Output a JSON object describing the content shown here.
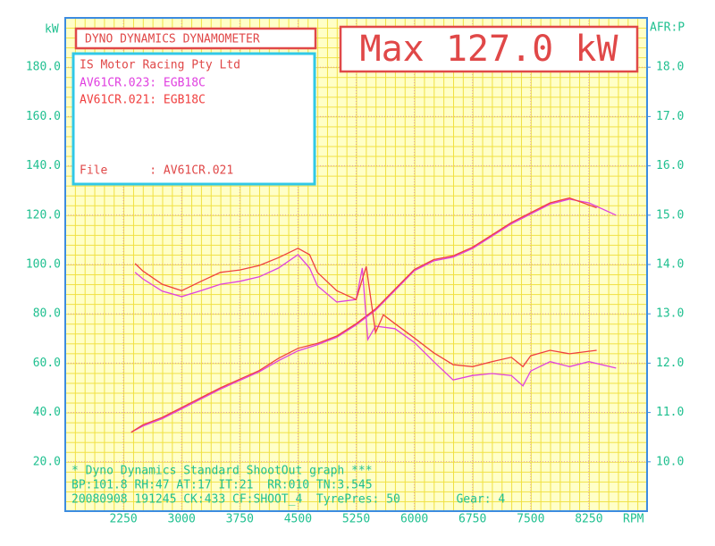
{
  "chart_data": {
    "type": "line",
    "title": "DYNO DYNAMICS DYNAMOMETER",
    "annotations": {
      "max": "Max 127.0 kW",
      "company": "IS Motor Racing Pty Ltd",
      "file": "File      : AV61CR.021",
      "footer": [
        "* Dyno Dynamics Standard ShootOut graph ***",
        "BP:101.8 RH:47 AT:17 IT:21  RR:010 TN:3.545",
        "20080908 191245 CK:433 CF:SHOOT_4  TyrePres: 50        Gear: 4"
      ]
    },
    "ylabel": "kW",
    "y2label": "AFR:P",
    "xlabel": "RPM",
    "xlim": [
      1500,
      9000
    ],
    "xticks": [
      2250,
      3000,
      3750,
      4500,
      5250,
      6000,
      6750,
      7500,
      8250
    ],
    "ylim": [
      0,
      200
    ],
    "yticks": [
      {
        "value": 20,
        "label": "20.0"
      },
      {
        "value": 40,
        "label": "40.0"
      },
      {
        "value": 60,
        "label": "60.0"
      },
      {
        "value": 80,
        "label": "80.0"
      },
      {
        "value": 100,
        "label": "100.0"
      },
      {
        "value": 120,
        "label": "120.0"
      },
      {
        "value": 140,
        "label": "140.0"
      },
      {
        "value": 160,
        "label": "160.0"
      },
      {
        "value": 180,
        "label": "180.0"
      }
    ],
    "y2lim": [
      9,
      19
    ],
    "y2ticks": [
      {
        "value": 10,
        "label": "10.0"
      },
      {
        "value": 11,
        "label": "11.0"
      },
      {
        "value": 12,
        "label": "12.0"
      },
      {
        "value": 13,
        "label": "13.0"
      },
      {
        "value": 14,
        "label": "14.0"
      },
      {
        "value": 15,
        "label": "15.0"
      },
      {
        "value": 16,
        "label": "16.0"
      },
      {
        "value": 17,
        "label": "17.0"
      },
      {
        "value": 18,
        "label": "18.0"
      }
    ],
    "grid": true,
    "series": [
      {
        "name": "AV61CR.023: EGB18C",
        "color": "#e040e0",
        "x": [
          2350,
          2500,
          2750,
          3000,
          3250,
          3500,
          3750,
          4000,
          4250,
          4500,
          4750,
          5000,
          5250,
          5500,
          5750,
          6000,
          6250,
          6500,
          6750,
          7000,
          7250,
          7500,
          7750,
          8000,
          8250,
          8600
        ],
        "values": [
          32,
          34.5,
          37.5,
          41.5,
          45.5,
          49.5,
          53,
          56.5,
          61,
          65,
          67.5,
          70.5,
          75.5,
          81.5,
          89.5,
          97.5,
          101.5,
          103,
          106.5,
          111.5,
          116.5,
          120.5,
          124.5,
          126.5,
          125,
          120
        ]
      },
      {
        "name": "AV61CR.021: EGB18C",
        "color": "#f04040",
        "x": [
          2350,
          2500,
          2750,
          3000,
          3250,
          3500,
          3750,
          4000,
          4250,
          4500,
          4750,
          5000,
          5250,
          5500,
          5750,
          6000,
          6250,
          6500,
          6750,
          7000,
          7250,
          7500,
          7750,
          8000,
          8350
        ],
        "values": [
          32,
          35,
          38,
          42,
          46,
          50,
          53.5,
          57,
          62,
          66,
          68,
          71,
          76,
          82,
          90,
          98,
          102,
          103.5,
          107,
          112,
          117,
          121,
          125,
          127,
          123
        ]
      },
      {
        "axis": "y2",
        "color": "#e040e0",
        "x": [
          2400,
          2500,
          2750,
          3000,
          3250,
          3500,
          3750,
          4000,
          4250,
          4500,
          4650,
          4750,
          5000,
          5250,
          5330,
          5400,
          5500,
          5750,
          6000,
          6250,
          6500,
          6750,
          7000,
          7250,
          7400,
          7500,
          7750,
          8000,
          8250,
          8600
        ],
        "values": [
          13.84,
          13.71,
          13.46,
          13.35,
          13.47,
          13.6,
          13.66,
          13.75,
          13.93,
          14.2,
          13.93,
          13.57,
          13.24,
          13.29,
          13.93,
          12.48,
          12.75,
          12.7,
          12.42,
          12.03,
          11.66,
          11.75,
          11.79,
          11.75,
          11.54,
          11.84,
          12.03,
          11.93,
          12.03,
          11.9
        ]
      },
      {
        "axis": "y2",
        "color": "#f04040",
        "x": [
          2400,
          2500,
          2750,
          3000,
          3250,
          3500,
          3750,
          4000,
          4250,
          4500,
          4650,
          4750,
          5000,
          5250,
          5380,
          5500,
          5600,
          5750,
          6000,
          6250,
          6500,
          6750,
          7000,
          7250,
          7400,
          7500,
          7750,
          8000,
          8350
        ],
        "values": [
          14.02,
          13.87,
          13.6,
          13.47,
          13.66,
          13.84,
          13.89,
          13.98,
          14.14,
          14.33,
          14.2,
          13.84,
          13.47,
          13.29,
          13.96,
          12.62,
          12.98,
          12.8,
          12.51,
          12.21,
          11.97,
          11.93,
          12.03,
          12.12,
          11.93,
          12.15,
          12.26,
          12.19,
          12.26
        ]
      }
    ]
  }
}
